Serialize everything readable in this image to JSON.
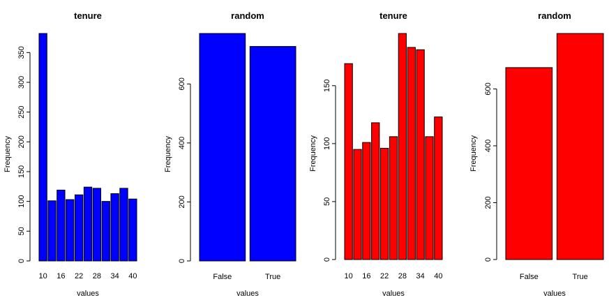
{
  "chart_data": [
    {
      "type": "bar",
      "title": "tenure",
      "xlabel": "values",
      "ylabel": "Frequency",
      "color": "#0000ff",
      "ylim": [
        0,
        382
      ],
      "yticks": [
        0,
        50,
        100,
        150,
        200,
        250,
        300,
        350
      ],
      "categories": [
        "10",
        "13",
        "16",
        "19",
        "22",
        "25",
        "28",
        "31",
        "34",
        "37",
        "40"
      ],
      "xtick_labels": [
        "10",
        "16",
        "22",
        "28",
        "34",
        "40"
      ],
      "values": [
        382,
        101,
        119,
        103,
        111,
        124,
        122,
        100,
        113,
        122,
        104
      ]
    },
    {
      "type": "bar",
      "title": "random",
      "xlabel": "values",
      "ylabel": "Frequency",
      "color": "#0000ff",
      "ylim": [
        0,
        771
      ],
      "yticks": [
        0,
        200,
        400,
        600
      ],
      "categories": [
        "False",
        "True"
      ],
      "xtick_labels": [
        "False",
        "True"
      ],
      "values": [
        771,
        727
      ]
    },
    {
      "type": "bar",
      "title": "tenure",
      "xlabel": "values",
      "ylabel": "Frequency",
      "color": "#ff0000",
      "ylim": [
        0,
        195
      ],
      "yticks": [
        0,
        50,
        100,
        150
      ],
      "categories": [
        "10",
        "13",
        "16",
        "19",
        "22",
        "25",
        "28",
        "31",
        "34",
        "37",
        "40"
      ],
      "xtick_labels": [
        "10",
        "16",
        "22",
        "28",
        "34",
        "40"
      ],
      "values": [
        169,
        95,
        101,
        118,
        96,
        106,
        195,
        183,
        181,
        106,
        123
      ]
    },
    {
      "type": "bar",
      "title": "random",
      "xlabel": "values",
      "ylabel": "Frequency",
      "color": "#ff0000",
      "ylim": [
        0,
        795
      ],
      "yticks": [
        0,
        200,
        400,
        600
      ],
      "categories": [
        "False",
        "True"
      ],
      "xtick_labels": [
        "False",
        "True"
      ],
      "values": [
        675,
        795
      ]
    }
  ]
}
